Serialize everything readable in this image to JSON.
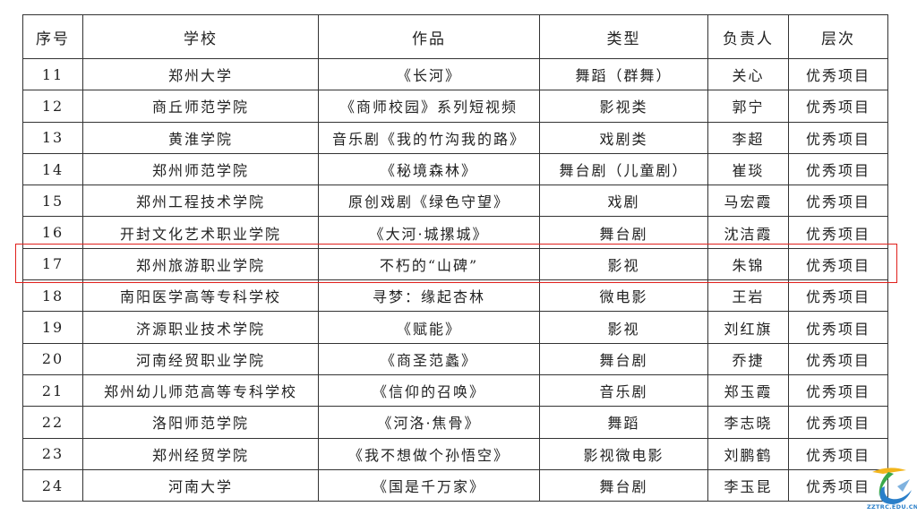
{
  "headers": [
    "序号",
    "学校",
    "作品",
    "类型",
    "负责人",
    "层次"
  ],
  "rows": [
    [
      "11",
      "郑州大学",
      "《长河》",
      "舞蹈（群舞）",
      "关心",
      "优秀项目"
    ],
    [
      "12",
      "商丘师范学院",
      "《商师校园》系列短视频",
      "影视类",
      "郭宁",
      "优秀项目"
    ],
    [
      "13",
      "黄淮学院",
      "音乐剧《我的竹沟我的路》",
      "戏剧类",
      "李超",
      "优秀项目"
    ],
    [
      "14",
      "郑州师范学院",
      "《秘境森林》",
      "舞台剧（儿童剧）",
      "崔琰",
      "优秀项目"
    ],
    [
      "15",
      "郑州工程技术学院",
      "原创戏剧《绿色守望》",
      "戏剧",
      "马宏霞",
      "优秀项目"
    ],
    [
      "16",
      "开封文化艺术职业学院",
      "《大河·城摞城》",
      "舞台剧",
      "沈洁霞",
      "优秀项目"
    ],
    [
      "17",
      "郑州旅游职业学院",
      "不朽的“山碑”",
      "影视",
      "朱锦",
      "优秀项目"
    ],
    [
      "18",
      "南阳医学高等专科学校",
      "寻梦：缘起杏林",
      "微电影",
      "王岩",
      "优秀项目"
    ],
    [
      "19",
      "济源职业技术学院",
      "《赋能》",
      "影视",
      "刘红旗",
      "优秀项目"
    ],
    [
      "20",
      "河南经贸职业学院",
      "《商圣范蠡》",
      "舞台剧",
      "乔捷",
      "优秀项目"
    ],
    [
      "21",
      "郑州幼儿师范高等专科学校",
      "《信仰的召唤》",
      "音乐剧",
      "郑玉霞",
      "优秀项目"
    ],
    [
      "22",
      "洛阳师范学院",
      "《河洛·焦骨》",
      "舞蹈",
      "李志晓",
      "优秀项目"
    ],
    [
      "23",
      "郑州经贸学院",
      "《我不想做个孙悟空》",
      "影视微电影",
      "刘鹏鹤",
      "优秀项目"
    ],
    [
      "24",
      "河南大学",
      "《国是千万家》",
      "舞台剧",
      "李玉昆",
      "优秀项目"
    ]
  ],
  "highlight_row": "17",
  "highlight_color": "#e0201c",
  "watermark": {
    "text": "ZZTRC.EDU.CN",
    "icon": "zztrc-logo-icon"
  }
}
